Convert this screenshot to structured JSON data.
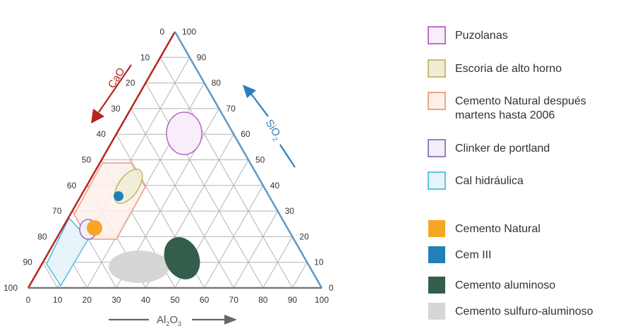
{
  "axes": {
    "cao_label": "CaO",
    "sio2_label_main": "SiO",
    "sio2_label_sub": "2",
    "al2o3_label_a": "Al",
    "al2o3_label_sub1": "2",
    "al2o3_label_b": "O",
    "al2o3_label_sub2": "3",
    "colors": {
      "cao": "#b5261e",
      "sio2": "#2a7fb8",
      "al2o3": "#666666",
      "grid": "#b3b3b3"
    },
    "bottom_ticks": [
      "0",
      "10",
      "20",
      "30",
      "40",
      "50",
      "60",
      "70",
      "80",
      "90",
      "100"
    ],
    "left_ticks": [
      "0",
      "10",
      "20",
      "30",
      "40",
      "50",
      "60",
      "70",
      "80",
      "90",
      "100"
    ],
    "right_ticks": [
      "100",
      "90",
      "80",
      "70",
      "60",
      "50",
      "40",
      "30",
      "20",
      "10",
      "0"
    ]
  },
  "legend": {
    "items": [
      {
        "label": "Puzolanas",
        "fill": "#f7eef9",
        "stroke": "#b565c5"
      },
      {
        "label": "Escoria de alto horno",
        "fill": "#efedd4",
        "stroke": "#c2b46a"
      },
      {
        "label": "Cemento Natural después\nmartens hasta 2006",
        "fill": "#fdf0ea",
        "stroke": "#ef9a7c"
      },
      {
        "label": "Clinker de portland",
        "fill": "#f2eff8",
        "stroke": "#8e72c0"
      },
      {
        "label": "Cal hidráulica",
        "fill": "#e6f3fa",
        "stroke": "#4fbfdf"
      },
      {
        "label": "Cemento Natural",
        "fill": "#f6a623",
        "stroke": "#f6a623"
      },
      {
        "label": "Cem III",
        "fill": "#2080b8",
        "stroke": "#2080b8"
      },
      {
        "label": "Cemento aluminoso",
        "fill": "#335e4b",
        "stroke": "#335e4b"
      },
      {
        "label": "Cemento sulfuro-aluminoso",
        "fill": "#d6d6d6",
        "stroke": "#d6d6d6"
      }
    ]
  }
}
